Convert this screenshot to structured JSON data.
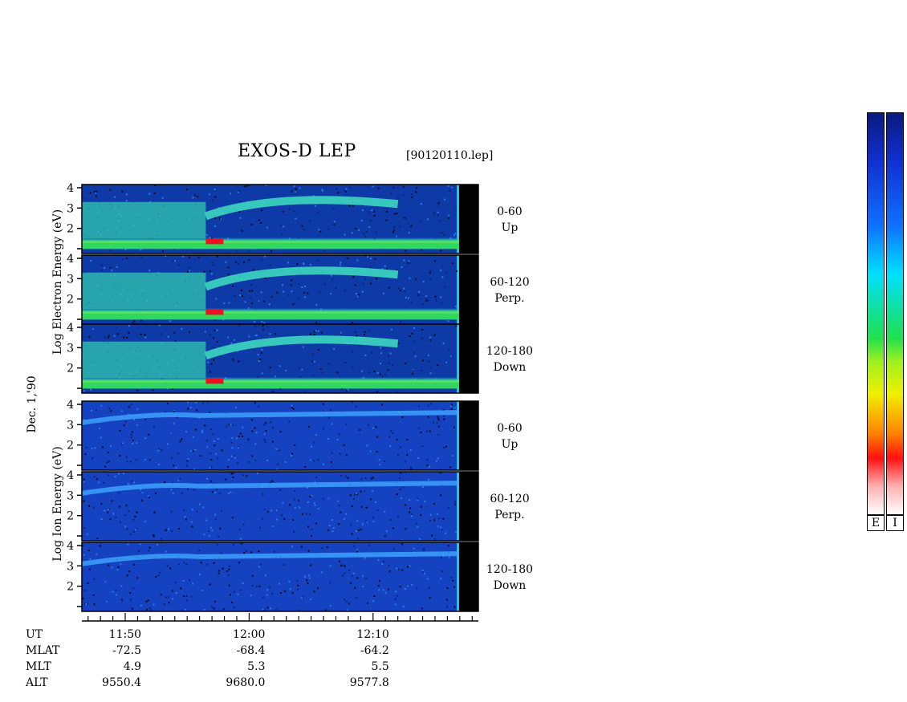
{
  "header": {
    "title": "EXOS-D LEP",
    "filename": "[90120110.lep]"
  },
  "axis_labels": {
    "electron_ylabel": "Log Electron Energy (eV)",
    "ion_ylabel": "Log Ion Energy (eV)",
    "date": "Dec. 1,'90"
  },
  "chart_data": {
    "type": "heatmap",
    "title": "EXOS-D LEP",
    "panels": [
      {
        "species": "Electron",
        "range": "0-60",
        "direction": "Up",
        "yticks": [
          "4",
          "3",
          "2",
          ""
        ],
        "ylim": [
          1,
          4
        ]
      },
      {
        "species": "Electron",
        "range": "60-120",
        "direction": "Perp.",
        "yticks": [
          "4",
          "3",
          "2",
          ""
        ],
        "ylim": [
          1,
          4
        ]
      },
      {
        "species": "Electron",
        "range": "120-180",
        "direction": "Down",
        "yticks": [
          "4",
          "3",
          "2",
          ""
        ],
        "ylim": [
          1,
          4
        ]
      },
      {
        "species": "Ion",
        "range": "0-60",
        "direction": "Up",
        "yticks": [
          "4",
          "3",
          "2",
          ""
        ],
        "ylim": [
          1,
          4
        ]
      },
      {
        "species": "Ion",
        "range": "60-120",
        "direction": "Perp.",
        "yticks": [
          "4",
          "3",
          "2",
          ""
        ],
        "ylim": [
          1,
          4
        ]
      },
      {
        "species": "Ion",
        "range": "120-180",
        "direction": "Down",
        "yticks": [
          "4",
          "3",
          "2",
          ""
        ],
        "ylim": [
          1,
          4
        ]
      }
    ],
    "x_tick_labels": [
      "11:50",
      "12:00",
      "12:10"
    ],
    "xlim_minutes_from_1150": [
      -3.5,
      28.5
    ],
    "x_ticks_minutes_from_1150": [
      0,
      10,
      20
    ],
    "ephemeris": {
      "rows": [
        {
          "name": "UT",
          "values": [
            "11:50",
            "12:00",
            "12:10"
          ]
        },
        {
          "name": "MLAT",
          "values": [
            "-72.5",
            "-68.4",
            "-64.2"
          ]
        },
        {
          "name": "MLT",
          "values": [
            "4.9",
            "5.3",
            "5.5"
          ]
        },
        {
          "name": "ALT",
          "values": [
            "9550.4",
            "9680.0",
            "9577.8"
          ]
        }
      ]
    },
    "colorbar_labels": [
      "E",
      "I"
    ],
    "colors": {
      "background": "#0b2c8f",
      "accent_low": "#1450d8",
      "band_green": "#30d860",
      "band_yellow": "#f0e020",
      "band_red": "#f01020"
    }
  }
}
